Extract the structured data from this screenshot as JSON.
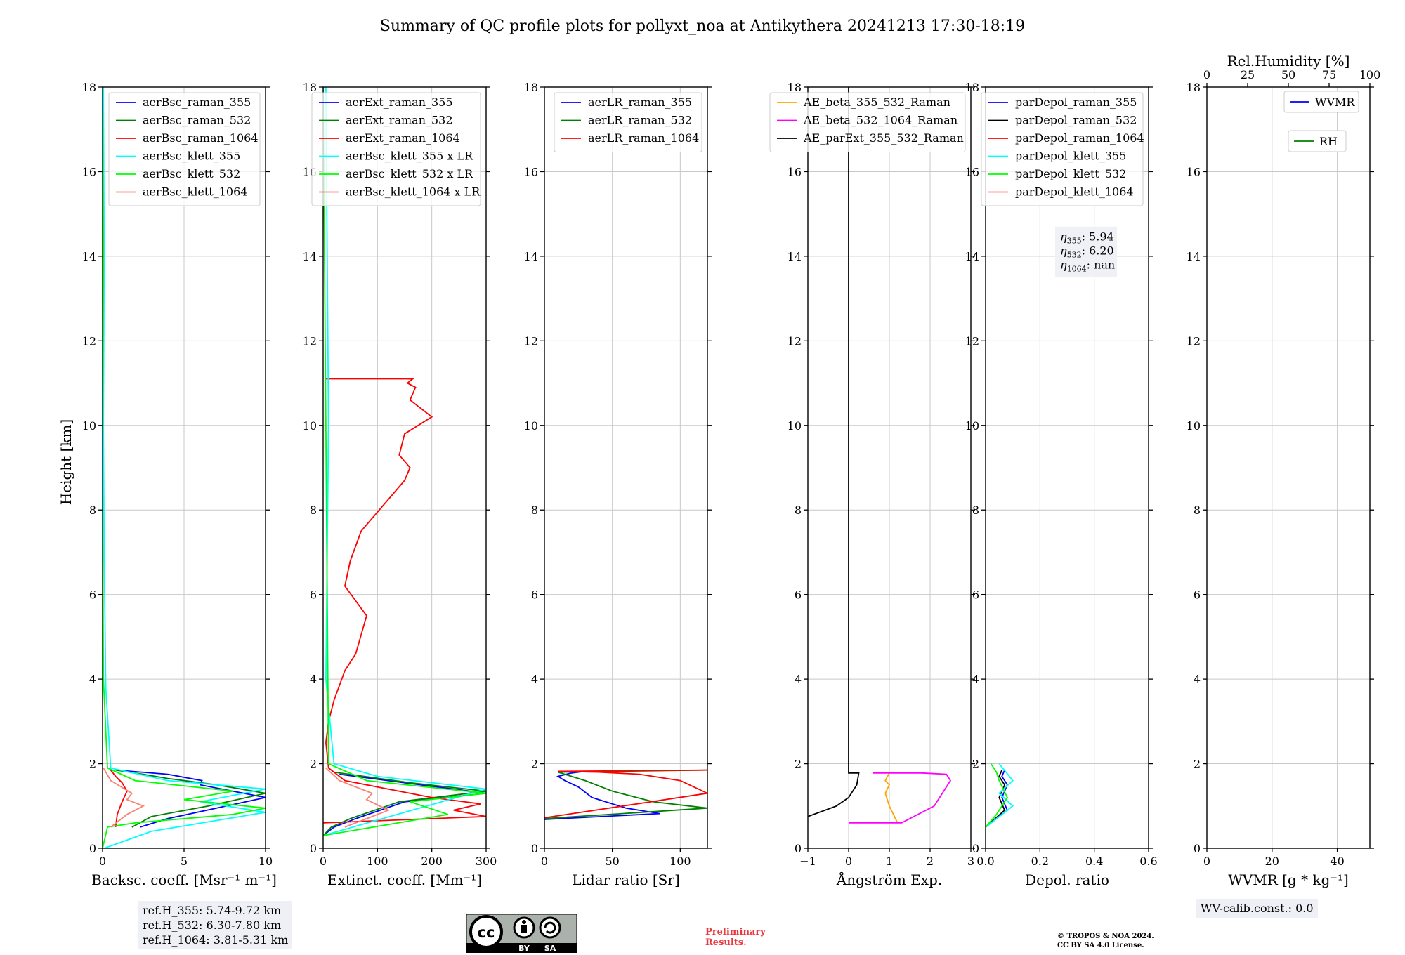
{
  "title": "Summary of QC profile plots for pollyxt_noa at Antikythera 20241213 17:30-18:19",
  "ylabel": "Height [km]",
  "footer": {
    "ref_heights": [
      "ref.H_355: 5.74-9.72 km",
      "ref.H_532: 6.30-7.80 km",
      "ref.H_1064: 3.81-5.31 km"
    ],
    "wv_calib": "WV-calib.const.: 0.0",
    "preliminary": [
      "Preliminary",
      "Results."
    ],
    "copyright": [
      "© TROPOS & NOA 2024.",
      "CC BY SA 4.0 License."
    ],
    "license_badge": {
      "icons": [
        "cc-icon",
        "by-icon",
        "sa-icon"
      ],
      "labels": [
        "BY",
        "SA"
      ]
    }
  },
  "colors": {
    "blue": "#0000ff",
    "green": "#008000",
    "red": "#ff0000",
    "cyan": "#00ffff",
    "lime": "#00ff00",
    "salmon": "#fa8072",
    "orange": "#ffa500",
    "magenta": "#ff00ff",
    "black": "#000000"
  },
  "chart_data": [
    {
      "type": "line",
      "xlabel": "Backsc. coeff. [Msr⁻¹ m⁻¹]",
      "ylabel": "Height [km]",
      "xlim": [
        0,
        10
      ],
      "ylim": [
        0,
        18
      ],
      "xticks": [
        "0",
        "5",
        "10"
      ],
      "yticks": [
        "0",
        "2",
        "4",
        "6",
        "8",
        "10",
        "12",
        "14",
        "16",
        "18"
      ],
      "legend": "top-right",
      "series": [
        {
          "name": "aerBsc_raman_355",
          "color": "blue",
          "x": [
            2.3,
            4,
            7,
            10,
            6,
            6.1,
            4,
            0.8
          ],
          "y": [
            0.5,
            0.7,
            0.95,
            1.2,
            1.5,
            1.6,
            1.75,
            1.85
          ]
        },
        {
          "name": "aerBsc_raman_532",
          "color": "green",
          "x": [
            1.8,
            3,
            6.5,
            10,
            7,
            4,
            2.5,
            0.8
          ],
          "y": [
            0.5,
            0.75,
            1.0,
            1.3,
            1.5,
            1.65,
            1.75,
            1.85
          ]
        },
        {
          "name": "aerBsc_raman_1064",
          "color": "red",
          "x": [
            0.8,
            0.9,
            1.2,
            1.5,
            1.2,
            0.8,
            0.5
          ],
          "y": [
            0.5,
            0.8,
            1.1,
            1.35,
            1.55,
            1.7,
            1.85
          ]
        },
        {
          "name": "aerBsc_klett_355",
          "color": "cyan",
          "x": [
            0.1,
            3,
            10,
            6,
            10,
            4,
            0.5,
            0.2,
            0.1,
            0.05,
            0.1,
            0.05
          ],
          "y": [
            0,
            0.4,
            0.85,
            1.1,
            1.4,
            1.6,
            1.9,
            3.8,
            7,
            10,
            14,
            18
          ]
        },
        {
          "name": "aerBsc_klett_532",
          "color": "lime",
          "x": [
            0,
            0.3,
            2,
            8,
            10,
            5,
            8,
            2,
            0.3,
            0.05,
            0,
            0.05,
            0
          ],
          "y": [
            0,
            0.5,
            0.6,
            0.8,
            0.95,
            1.15,
            1.35,
            1.6,
            1.9,
            4,
            9,
            14,
            18
          ]
        },
        {
          "name": "aerBsc_klett_1064",
          "color": "salmon",
          "x": [
            0.5,
            1.5,
            2.5,
            1.5,
            1.8,
            0.5,
            0.05
          ],
          "y": [
            0.5,
            0.8,
            1.0,
            1.15,
            1.3,
            1.6,
            1.9
          ]
        }
      ]
    },
    {
      "type": "line",
      "xlabel": "Extinct. coeff. [Mm⁻¹]",
      "xlim": [
        0,
        300
      ],
      "ylim": [
        0,
        18
      ],
      "xticks": [
        "0",
        "100",
        "200",
        "300"
      ],
      "yticks": [
        "0",
        "2",
        "4",
        "6",
        "8",
        "10",
        "12",
        "14",
        "16",
        "18"
      ],
      "legend": "top-right",
      "series": [
        {
          "name": "aerExt_raman_355",
          "color": "blue",
          "x": [
            0,
            20,
            60,
            150,
            300,
            150,
            30
          ],
          "y": [
            0.3,
            0.5,
            0.7,
            1.1,
            1.3,
            1.55,
            1.75
          ]
        },
        {
          "name": "aerExt_raman_532",
          "color": "green",
          "x": [
            0,
            15,
            50,
            140,
            300,
            160,
            20
          ],
          "y": [
            0.3,
            0.5,
            0.7,
            1.1,
            1.35,
            1.55,
            1.8
          ]
        },
        {
          "name": "aerExt_raman_1064",
          "color": "red",
          "x": [
            0,
            300,
            240,
            290,
            200,
            120,
            40,
            10,
            5,
            10,
            20,
            40,
            60,
            80,
            40,
            50,
            70,
            150,
            160,
            140,
            150,
            200,
            180,
            160,
            170,
            155,
            165,
            5
          ],
          "y": [
            0.6,
            0.75,
            0.9,
            1.05,
            1.2,
            1.4,
            1.6,
            1.9,
            2.5,
            3,
            3.5,
            4.2,
            4.6,
            5.5,
            6.2,
            6.8,
            7.5,
            8.7,
            9,
            9.3,
            9.8,
            10.2,
            10.4,
            10.6,
            10.9,
            11.0,
            11.1,
            11.1
          ]
        },
        {
          "name": "aerBsc_klett_355 x LR",
          "color": "cyan",
          "x": [
            0,
            300,
            100,
            20,
            5,
            10,
            5
          ],
          "y": [
            0.3,
            1.4,
            1.7,
            2.0,
            4,
            10,
            18
          ]
        },
        {
          "name": "aerBsc_klett_532 x LR",
          "color": "lime",
          "x": [
            0,
            230,
            160,
            300,
            80,
            10,
            0
          ],
          "y": [
            0.3,
            0.8,
            1.1,
            1.3,
            1.6,
            2.0,
            18
          ]
        },
        {
          "name": "aerBsc_klett_1064 x LR",
          "color": "salmon",
          "x": [
            40,
            120,
            80,
            90,
            30,
            5
          ],
          "y": [
            0.5,
            0.9,
            1.15,
            1.3,
            1.6,
            1.9
          ]
        }
      ]
    },
    {
      "type": "line",
      "xlabel": "Lidar ratio [Sr]",
      "xlim": [
        0,
        120
      ],
      "ylim": [
        0,
        18
      ],
      "xticks": [
        "0",
        "50",
        "100"
      ],
      "yticks": [
        "0",
        "2",
        "4",
        "6",
        "8",
        "10",
        "12",
        "14",
        "16",
        "18"
      ],
      "legend": "top-right",
      "series": [
        {
          "name": "aerLR_raman_355",
          "color": "blue",
          "x": [
            0,
            85,
            60,
            35,
            25,
            15,
            10,
            20,
            30
          ],
          "y": [
            0.68,
            0.82,
            0.95,
            1.2,
            1.45,
            1.6,
            1.7,
            1.78,
            1.82
          ]
        },
        {
          "name": "aerLR_raman_532",
          "color": "green",
          "x": [
            0,
            120,
            80,
            50,
            30,
            15,
            10,
            120
          ],
          "y": [
            0.7,
            0.95,
            1.1,
            1.35,
            1.6,
            1.75,
            1.8,
            1.85
          ]
        },
        {
          "name": "aerLR_raman_1064",
          "color": "red",
          "x": [
            0,
            120,
            100,
            70,
            40,
            10,
            120
          ],
          "y": [
            0.72,
            1.3,
            1.6,
            1.75,
            1.8,
            1.82,
            1.85
          ]
        }
      ]
    },
    {
      "type": "line",
      "xlabel": "Ångström Exp.",
      "xlim": [
        -1,
        3
      ],
      "ylim": [
        0,
        18
      ],
      "xticks": [
        "−1",
        "0",
        "1",
        "2",
        "3"
      ],
      "yticks": [
        "0",
        "2",
        "4",
        "6",
        "8",
        "10",
        "12",
        "14",
        "16",
        "18"
      ],
      "legend": "top-right",
      "series": [
        {
          "name": "AE_beta_355_532_Raman",
          "color": "orange",
          "x": [
            1.2,
            1.0,
            0.9,
            1.0,
            0.9,
            1.0
          ],
          "y": [
            0.6,
            1.0,
            1.3,
            1.5,
            1.6,
            1.78
          ]
        },
        {
          "name": "AE_beta_532_1064_Raman",
          "color": "magenta",
          "x": [
            0,
            1.3,
            2.1,
            2.3,
            2.5,
            2.4,
            1.8,
            0.6
          ],
          "y": [
            0.6,
            0.6,
            1.0,
            1.3,
            1.6,
            1.75,
            1.78,
            1.78
          ]
        },
        {
          "name": "AE_parExt_355_532_Raman",
          "color": "black",
          "x": [
            -1,
            -0.3,
            0,
            0.2,
            0.25,
            0,
            0,
            0
          ],
          "y": [
            0.75,
            1.0,
            1.2,
            1.5,
            1.78,
            1.78,
            10,
            18
          ]
        }
      ]
    },
    {
      "type": "line",
      "xlabel": "Depol. ratio",
      "xlim": [
        0,
        0.6
      ],
      "ylim": [
        0,
        18
      ],
      "xticks": [
        "0.0",
        "0.2",
        "0.4",
        "0.6"
      ],
      "yticks": [
        "0",
        "2",
        "4",
        "6",
        "8",
        "10",
        "12",
        "14",
        "16",
        "18"
      ],
      "legend": "top-right",
      "annotation": [
        {
          "sub": "355",
          "val": ": 5.94"
        },
        {
          "sub": "532",
          "val": ": 6.20"
        },
        {
          "sub": "1064",
          "val": ": nan"
        }
      ],
      "series": [
        {
          "name": "parDepol_raman_355",
          "color": "blue",
          "x": [
            0,
            0.08,
            0.06,
            0.08,
            0.06,
            0.07
          ],
          "y": [
            0.5,
            0.9,
            1.2,
            1.5,
            1.7,
            1.85
          ]
        },
        {
          "name": "parDepol_raman_532",
          "color": "black",
          "x": [
            0,
            0.07,
            0.05,
            0.07,
            0.05,
            0.06
          ],
          "y": [
            0.5,
            0.9,
            1.2,
            1.5,
            1.7,
            1.85
          ]
        },
        {
          "name": "parDepol_raman_1064",
          "color": "red",
          "x": [],
          "y": []
        },
        {
          "name": "parDepol_klett_355",
          "color": "cyan",
          "x": [
            0,
            0.1,
            0.05,
            0.1,
            0.05
          ],
          "y": [
            0.5,
            1.0,
            1.3,
            1.6,
            2.0
          ]
        },
        {
          "name": "parDepol_klett_532",
          "color": "lime",
          "x": [
            0,
            0.04,
            0.08,
            0.05,
            0.04,
            0.02
          ],
          "y": [
            0.5,
            0.8,
            1.2,
            1.6,
            1.8,
            2.0
          ]
        },
        {
          "name": "parDepol_klett_1064",
          "color": "salmon",
          "x": [],
          "y": []
        }
      ]
    },
    {
      "type": "line",
      "xlabel": "WVMR [g * kg⁻¹]",
      "x2label": "Rel.Humidity [%]",
      "xlim": [
        0,
        50
      ],
      "x2lim": [
        0,
        100
      ],
      "ylim": [
        0,
        18
      ],
      "xticks": [
        "0",
        "20",
        "40"
      ],
      "x2ticks": [
        "0",
        "25",
        "50",
        "75",
        "100"
      ],
      "yticks": [
        "0",
        "2",
        "4",
        "6",
        "8",
        "10",
        "12",
        "14",
        "16",
        "18"
      ],
      "series": [
        {
          "name": "WVMR",
          "color": "blue",
          "x": [],
          "y": []
        },
        {
          "name": "RH",
          "color": "green",
          "x": [],
          "y": []
        }
      ]
    }
  ]
}
